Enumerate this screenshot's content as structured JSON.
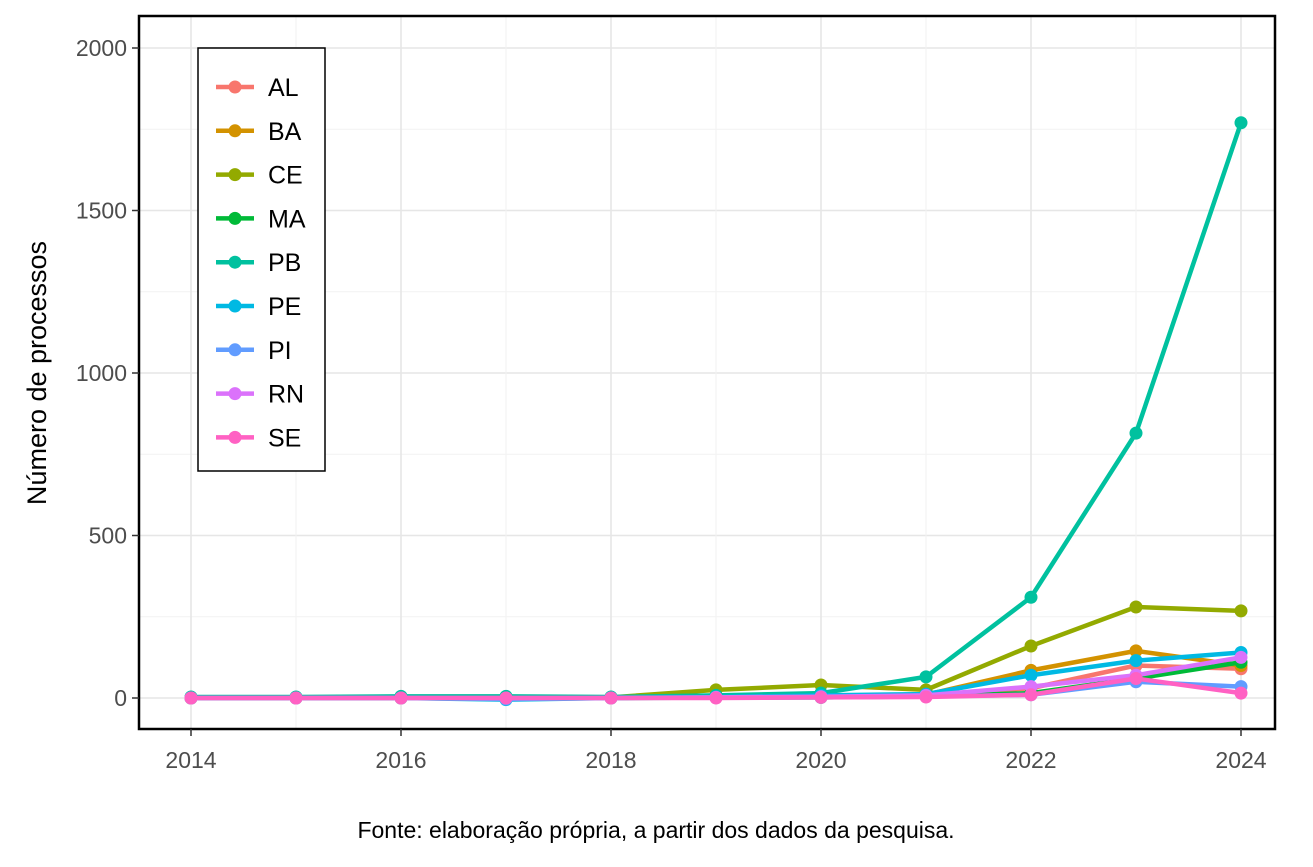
{
  "chart_data": {
    "type": "line",
    "title": "",
    "xlabel": "",
    "ylabel": "Número de processos",
    "x": [
      2014,
      2015,
      2016,
      2017,
      2018,
      2019,
      2020,
      2021,
      2022,
      2023,
      2024
    ],
    "xticks": [
      "2014",
      "2016",
      "2018",
      "2020",
      "2022",
      "2024"
    ],
    "yticks": [
      "0",
      "500",
      "1000",
      "1500",
      "2000"
    ],
    "xlim": [
      2013.5,
      2024.5
    ],
    "ylim": [
      -100,
      2000
    ],
    "grid": true,
    "legend_position": "top-left",
    "series": [
      {
        "name": "AL",
        "color": "#F8766D",
        "values": [
          0,
          0,
          0,
          0,
          0,
          2,
          5,
          8,
          30,
          100,
          90
        ]
      },
      {
        "name": "BA",
        "color": "#D39200",
        "values": [
          0,
          0,
          0,
          0,
          0,
          3,
          5,
          10,
          85,
          145,
          100
        ]
      },
      {
        "name": "CE",
        "color": "#93AA00",
        "values": [
          0,
          0,
          0,
          0,
          2,
          25,
          40,
          25,
          160,
          280,
          268
        ]
      },
      {
        "name": "MA",
        "color": "#00BA38",
        "values": [
          0,
          0,
          0,
          0,
          0,
          1,
          2,
          5,
          15,
          60,
          110
        ]
      },
      {
        "name": "PB",
        "color": "#00C19F",
        "values": [
          3,
          3,
          5,
          5,
          3,
          8,
          15,
          65,
          310,
          815,
          1770
        ]
      },
      {
        "name": "PE",
        "color": "#00B9E3",
        "values": [
          0,
          0,
          0,
          -5,
          0,
          3,
          8,
          12,
          70,
          115,
          140
        ]
      },
      {
        "name": "PI",
        "color": "#619CFF",
        "values": [
          0,
          0,
          0,
          -3,
          0,
          1,
          2,
          5,
          10,
          50,
          35
        ]
      },
      {
        "name": "RN",
        "color": "#DB72FB",
        "values": [
          0,
          0,
          0,
          0,
          0,
          2,
          4,
          8,
          35,
          70,
          125
        ]
      },
      {
        "name": "SE",
        "color": "#FF61C3",
        "values": [
          0,
          0,
          0,
          0,
          0,
          0,
          2,
          3,
          10,
          60,
          15
        ]
      }
    ]
  },
  "caption": "Fonte: elaboração própria, a partir dos dados da pesquisa."
}
